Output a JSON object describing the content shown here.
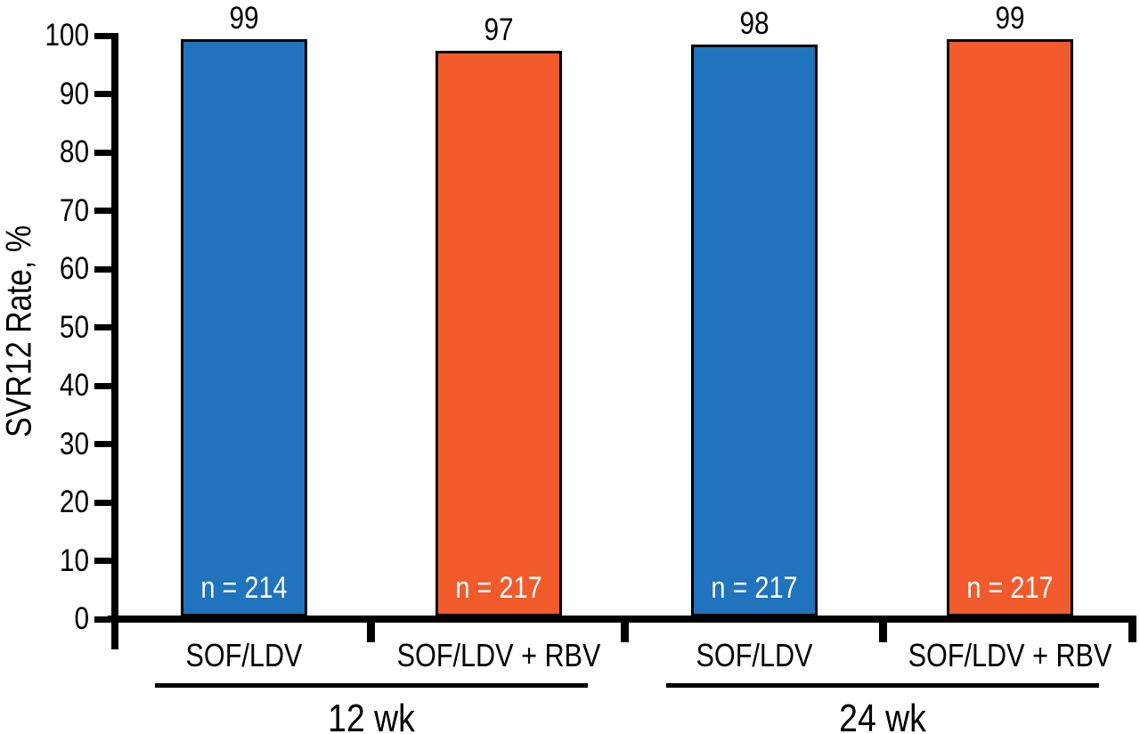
{
  "chart_data": {
    "type": "bar",
    "title": "",
    "ylabel": "SVR12 Rate, %",
    "xlabel": "",
    "ylim": [
      0,
      100
    ],
    "y_ticks": [
      0,
      10,
      20,
      30,
      40,
      50,
      60,
      70,
      80,
      90,
      100
    ],
    "grid": false,
    "colors": {
      "blue": "#2073BC",
      "orange": "#F15B2C",
      "outline": "#000000",
      "axis": "#000000",
      "n_label_text": "#FFFFFF"
    },
    "groups": [
      {
        "label": "12 wk",
        "bars": [
          {
            "category": "SOF/LDV",
            "value": 99,
            "n_label": "n = 214",
            "color": "blue"
          },
          {
            "category": "SOF/LDV + RBV",
            "value": 97,
            "n_label": "n = 217",
            "color": "orange"
          }
        ]
      },
      {
        "label": "24 wk",
        "bars": [
          {
            "category": "SOF/LDV",
            "value": 98,
            "n_label": "n = 217",
            "color": "blue"
          },
          {
            "category": "SOF/LDV + RBV",
            "value": 99,
            "n_label": "n = 217",
            "color": "orange"
          }
        ]
      }
    ]
  }
}
